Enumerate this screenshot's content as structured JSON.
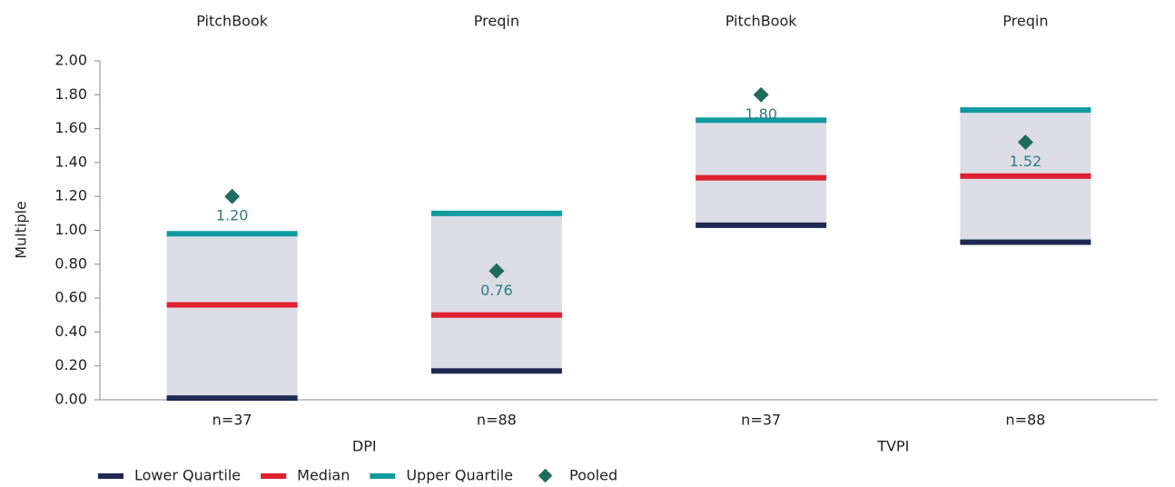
{
  "chart_data": {
    "type": "quartile-box",
    "y_label": "Multiple",
    "categories": [
      "PitchBook",
      "Preqin",
      "PitchBook",
      "Preqin"
    ],
    "sample_sizes": [
      "n=37",
      "n=88",
      "n=37",
      "n=88"
    ],
    "groups": [
      "DPI",
      "TVPI"
    ],
    "box_color": "#dcdce6",
    "series": [
      {
        "name": "Lower Quartile",
        "color": "#1d2951",
        "values": [
          0.01,
          0.17,
          1.03,
          0.93
        ]
      },
      {
        "name": "Median",
        "color": "#e0202e",
        "values": [
          0.56,
          0.5,
          1.31,
          1.32
        ]
      },
      {
        "name": "Upper Quartile",
        "color": "#0f9aa0",
        "values": [
          0.98,
          1.1,
          1.65,
          1.71
        ]
      },
      {
        "name": "Pooled",
        "color": "#1f6b5e",
        "label_color": "#2a7f7f",
        "values": [
          1.2,
          0.76,
          1.8,
          1.52
        ],
        "value_labels": [
          "1.20",
          "0.76",
          "1.80",
          "1.52"
        ]
      }
    ],
    "ylim": [
      0,
      2
    ],
    "yticks": [
      {
        "value": 0,
        "label": "0.00"
      },
      {
        "value": 0.2,
        "label": "0.20"
      },
      {
        "value": 0.4,
        "label": "0.40"
      },
      {
        "value": 0.6,
        "label": "0.60"
      },
      {
        "value": 0.8,
        "label": "0.80"
      },
      {
        "value": 1,
        "label": "1.00"
      },
      {
        "value": 1.2,
        "label": "1.20"
      },
      {
        "value": 1.4,
        "label": "1.40"
      },
      {
        "value": 1.6,
        "label": "1.60"
      },
      {
        "value": 1.8,
        "label": "1.80"
      },
      {
        "value": 2,
        "label": "2.00"
      }
    ]
  }
}
